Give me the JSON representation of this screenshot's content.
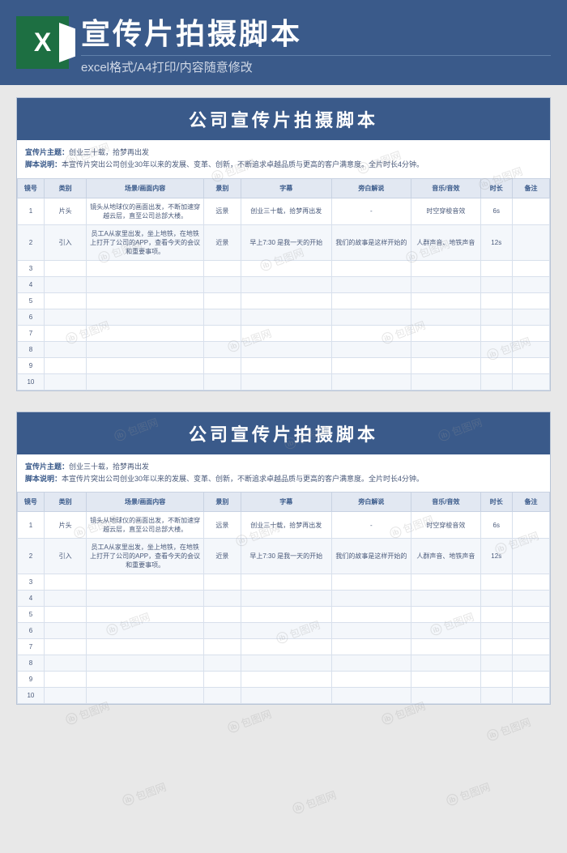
{
  "banner": {
    "title": "宣传片拍摄脚本",
    "subtitle": "excel格式/A4打印/内容随意修改"
  },
  "sheet": {
    "title": "公司宣传片拍摄脚本",
    "meta_theme_label": "宣传片主题：",
    "meta_theme_value": "创业三十载，拾梦再出发",
    "meta_desc_label": "脚本说明：",
    "meta_desc_value": "本宣传片突出公司创业30年以来的发展、变革、创新，不断追求卓越品质与更高的客户满意度。全片时长4分钟。",
    "columns": [
      "镜号",
      "类别",
      "场景/画面内容",
      "景别",
      "字幕",
      "旁白解说",
      "音乐/音效",
      "时长",
      "备注"
    ],
    "rows": [
      {
        "no": "1",
        "type": "片头",
        "scene": "镜头从地球仪的画面出发，不断加速穿越云层，直至公司总部大楼。",
        "shot": "远景",
        "sub": "创业三十载，拾梦再出发",
        "narr": "-",
        "music": "时空穿梭音效",
        "dur": "6s",
        "note": ""
      },
      {
        "no": "2",
        "type": "引入",
        "scene": "员工A从家里出发，坐上地铁，在地铁上打开了公司的APP，查看今天的会议和重要事项。",
        "shot": "近景",
        "sub": "早上7:30 是我一天的开始",
        "narr": "我们的故事是这样开始的",
        "music": "人群声音、地铁声音",
        "dur": "12s",
        "note": ""
      },
      {
        "no": "3",
        "type": "",
        "scene": "",
        "shot": "",
        "sub": "",
        "narr": "",
        "music": "",
        "dur": "",
        "note": ""
      },
      {
        "no": "4",
        "type": "",
        "scene": "",
        "shot": "",
        "sub": "",
        "narr": "",
        "music": "",
        "dur": "",
        "note": ""
      },
      {
        "no": "5",
        "type": "",
        "scene": "",
        "shot": "",
        "sub": "",
        "narr": "",
        "music": "",
        "dur": "",
        "note": ""
      },
      {
        "no": "6",
        "type": "",
        "scene": "",
        "shot": "",
        "sub": "",
        "narr": "",
        "music": "",
        "dur": "",
        "note": ""
      },
      {
        "no": "7",
        "type": "",
        "scene": "",
        "shot": "",
        "sub": "",
        "narr": "",
        "music": "",
        "dur": "",
        "note": ""
      },
      {
        "no": "8",
        "type": "",
        "scene": "",
        "shot": "",
        "sub": "",
        "narr": "",
        "music": "",
        "dur": "",
        "note": ""
      },
      {
        "no": "9",
        "type": "",
        "scene": "",
        "shot": "",
        "sub": "",
        "narr": "",
        "music": "",
        "dur": "",
        "note": ""
      },
      {
        "no": "10",
        "type": "",
        "scene": "",
        "shot": "",
        "sub": "",
        "narr": "",
        "music": "",
        "dur": "",
        "note": ""
      }
    ]
  },
  "watermark": "包图网"
}
